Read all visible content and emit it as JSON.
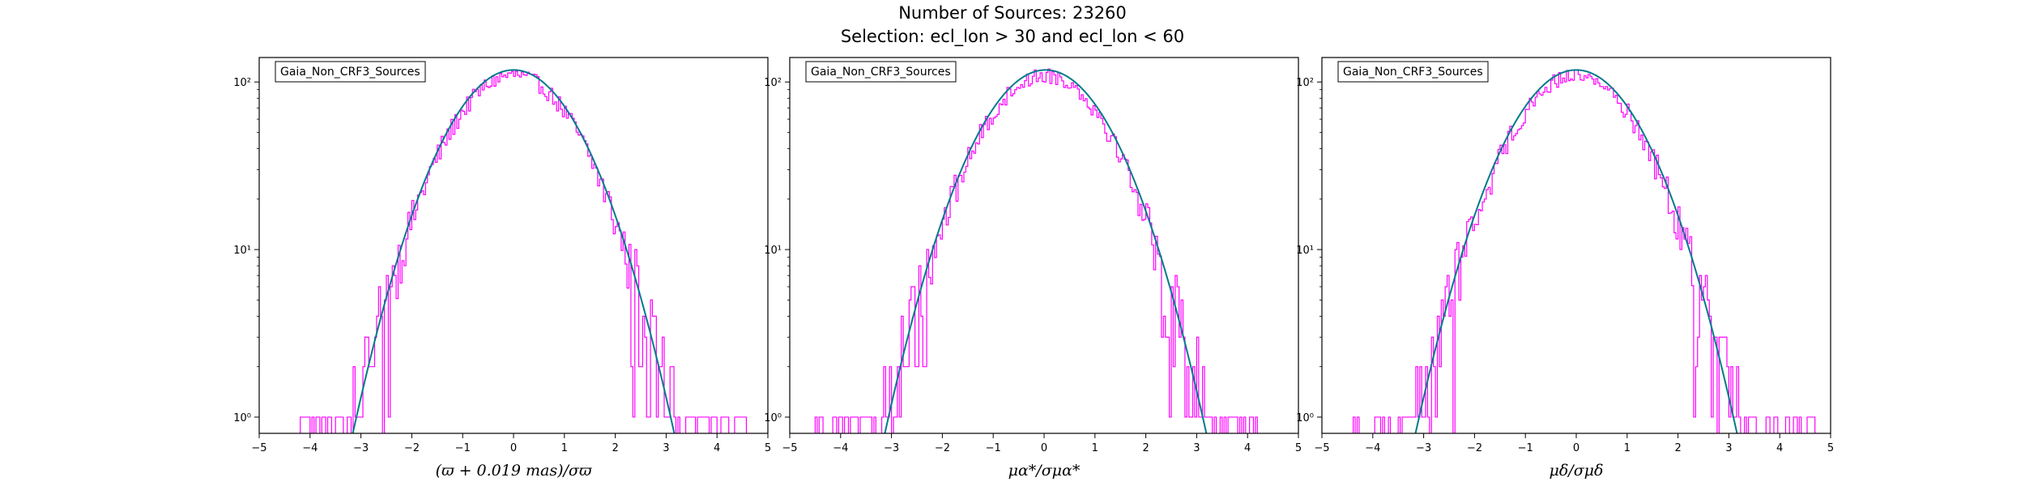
{
  "figure": {
    "title_line1": "Number of Sources: 23260",
    "title_line2": "Selection: ecl_lon > 30 and ecl_lon < 60"
  },
  "colors": {
    "histogram": "#ff00ff",
    "model": "#007b8a",
    "axes": "#000000",
    "legend_border": "#000000"
  },
  "chart_data": [
    {
      "type": "histogram",
      "legend": "Gaia_Non_CRF3_Sources",
      "xlabel": "(ϖ + 0.019 mas)/σϖ",
      "xlim": [
        -5,
        5
      ],
      "ylim": [
        0.8,
        140
      ],
      "yscale": "log",
      "x_ticks": [
        "−5",
        "−4",
        "−3",
        "−2",
        "−1",
        "0",
        "1",
        "2",
        "3",
        "4",
        "5"
      ],
      "y_ticks": [
        "10⁰",
        "10¹",
        "10²"
      ],
      "series": [
        {
          "kind": "histogram",
          "peak_count": 110,
          "support": [
            -4.2,
            4.6
          ]
        },
        {
          "kind": "gaussian_model",
          "amplitude": 118,
          "mean": 0.0,
          "sigma": 1.0
        }
      ]
    },
    {
      "type": "histogram",
      "legend": "Gaia_Non_CRF3_Sources",
      "xlabel": "μα*/σμα*",
      "xlim": [
        -5,
        5
      ],
      "ylim": [
        0.8,
        140
      ],
      "yscale": "log",
      "x_ticks": [
        "−5",
        "−4",
        "−3",
        "−2",
        "−1",
        "0",
        "1",
        "2",
        "3",
        "4",
        "5"
      ],
      "y_ticks": [
        "10⁰",
        "10¹",
        "10²"
      ],
      "series": [
        {
          "kind": "histogram",
          "peak_count": 110,
          "support": [
            -4.5,
            4.2
          ]
        },
        {
          "kind": "gaussian_model",
          "amplitude": 118,
          "mean": 0.03,
          "sigma": 1.0
        }
      ]
    },
    {
      "type": "histogram",
      "legend": "Gaia_Non_CRF3_Sources",
      "xlabel": "μδ/σμδ",
      "xlim": [
        -5,
        5
      ],
      "ylim": [
        0.8,
        140
      ],
      "yscale": "log",
      "x_ticks": [
        "−5",
        "−4",
        "−3",
        "−2",
        "−1",
        "0",
        "1",
        "2",
        "3",
        "4",
        "5"
      ],
      "y_ticks": [
        "10⁰",
        "10¹",
        "10²"
      ],
      "series": [
        {
          "kind": "histogram",
          "peak_count": 110,
          "support": [
            -4.4,
            4.7
          ]
        },
        {
          "kind": "gaussian_model",
          "amplitude": 118,
          "mean": 0.0,
          "sigma": 1.0
        }
      ]
    }
  ]
}
